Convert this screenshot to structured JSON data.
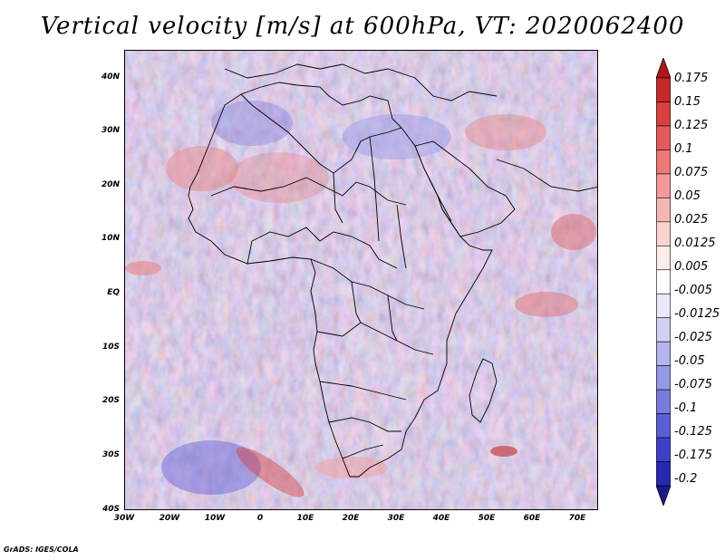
{
  "title": "Vertical velocity [m/s] at 600hPa, VT: 2020062400",
  "credit": "GrADS: IGES/COLA",
  "y_ticks": [
    "40N",
    "30N",
    "20N",
    "10N",
    "EQ",
    "10S",
    "20S",
    "30S",
    "40S"
  ],
  "x_ticks": [
    "30W",
    "20W",
    "10W",
    "0",
    "10E",
    "20E",
    "30E",
    "40E",
    "50E",
    "60E",
    "70E"
  ],
  "colorbar": {
    "labels": [
      "0.175",
      "0.15",
      "0.125",
      "0.1",
      "0.075",
      "0.05",
      "0.025",
      "0.0125",
      "0.005",
      "-0.005",
      "-0.0125",
      "-0.025",
      "-0.05",
      "-0.075",
      "-0.1",
      "-0.125",
      "-0.175",
      "-0.2"
    ],
    "colors": [
      "#b01818",
      "#c52a2a",
      "#d84040",
      "#e35a5a",
      "#ec7878",
      "#f29898",
      "#f6b6b6",
      "#fad3d3",
      "#fdecec",
      "#ffffff",
      "#e9e9fb",
      "#d1d1f6",
      "#b5b5f0",
      "#9898e8",
      "#7b7bdf",
      "#5e5ed4",
      "#4040c6",
      "#2828b0",
      "#1a1a8c"
    ]
  },
  "colors": {
    "field_base": "#cfd0f3",
    "positive": "#ee8a8a",
    "negative": "#7d7fe0",
    "coast": "#000000"
  }
}
